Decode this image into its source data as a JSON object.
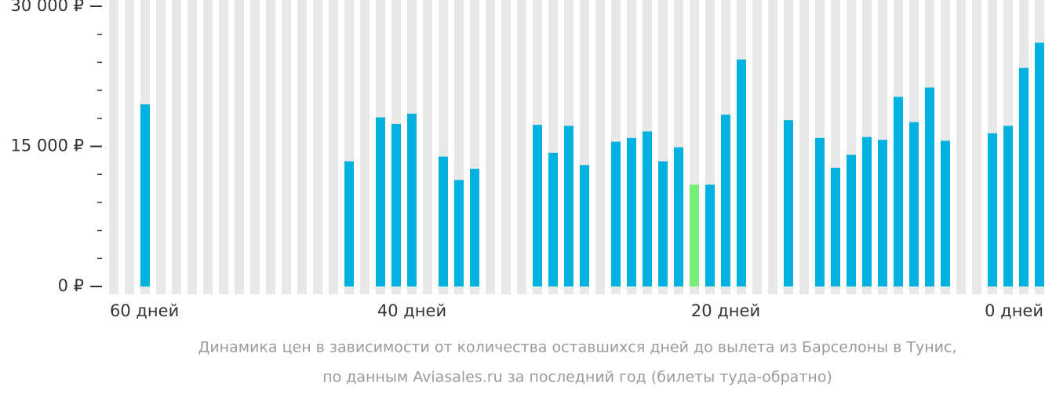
{
  "chart_data": {
    "type": "bar",
    "caption": [
      "Динамика цен в зависимости от количества оставшихся дней до вылета из Барселоны в Тунис,",
      "по данным Aviasales.ru за последний год (билеты туда-обратно)"
    ],
    "x": [
      59,
      58,
      57,
      56,
      55,
      54,
      53,
      52,
      51,
      50,
      49,
      48,
      47,
      46,
      45,
      44,
      43,
      42,
      41,
      40,
      39,
      38,
      37,
      36,
      35,
      34,
      33,
      32,
      31,
      30,
      29,
      28,
      27,
      26,
      25,
      24,
      23,
      22,
      21,
      20,
      19,
      18,
      17,
      16,
      15,
      14,
      13,
      12,
      11,
      10,
      9,
      8,
      7,
      6,
      5,
      4,
      3,
      2,
      1,
      0
    ],
    "values": [
      null,
      null,
      19500,
      null,
      null,
      null,
      null,
      null,
      null,
      null,
      null,
      null,
      null,
      null,
      null,
      13400,
      null,
      18100,
      17400,
      18500,
      null,
      13900,
      11400,
      12600,
      null,
      null,
      null,
      17300,
      14300,
      17200,
      13000,
      null,
      15500,
      15900,
      16600,
      13400,
      14900,
      10900,
      10900,
      18400,
      24300,
      null,
      null,
      17800,
      null,
      15900,
      12700,
      14100,
      16000,
      15700,
      20300,
      17600,
      21300,
      15600,
      null,
      null,
      16400,
      17200,
      23400,
      26100
    ],
    "color": "#00b0de",
    "highlight_x": 22,
    "highlight_color": "#77ee77",
    "slot_color": "#e8e8e8",
    "xlim": [
      59.5,
      -0.5
    ],
    "xticks": [
      {
        "value": 60,
        "label": "60 дней"
      },
      {
        "value": 40,
        "label": "40 дней"
      },
      {
        "value": 20,
        "label": "20 дней"
      },
      {
        "value": 0,
        "label": "0 дней"
      }
    ],
    "ylim": [
      0,
      30000
    ],
    "yticks": [
      {
        "value": 0,
        "label": "0 ₽"
      },
      {
        "value": 15000,
        "label": "15 000 ₽"
      },
      {
        "value": 30000,
        "label": "30 000 ₽"
      }
    ],
    "yminorticks": [
      3000,
      6000,
      9000,
      12000,
      18000,
      21000,
      24000,
      27000
    ]
  }
}
